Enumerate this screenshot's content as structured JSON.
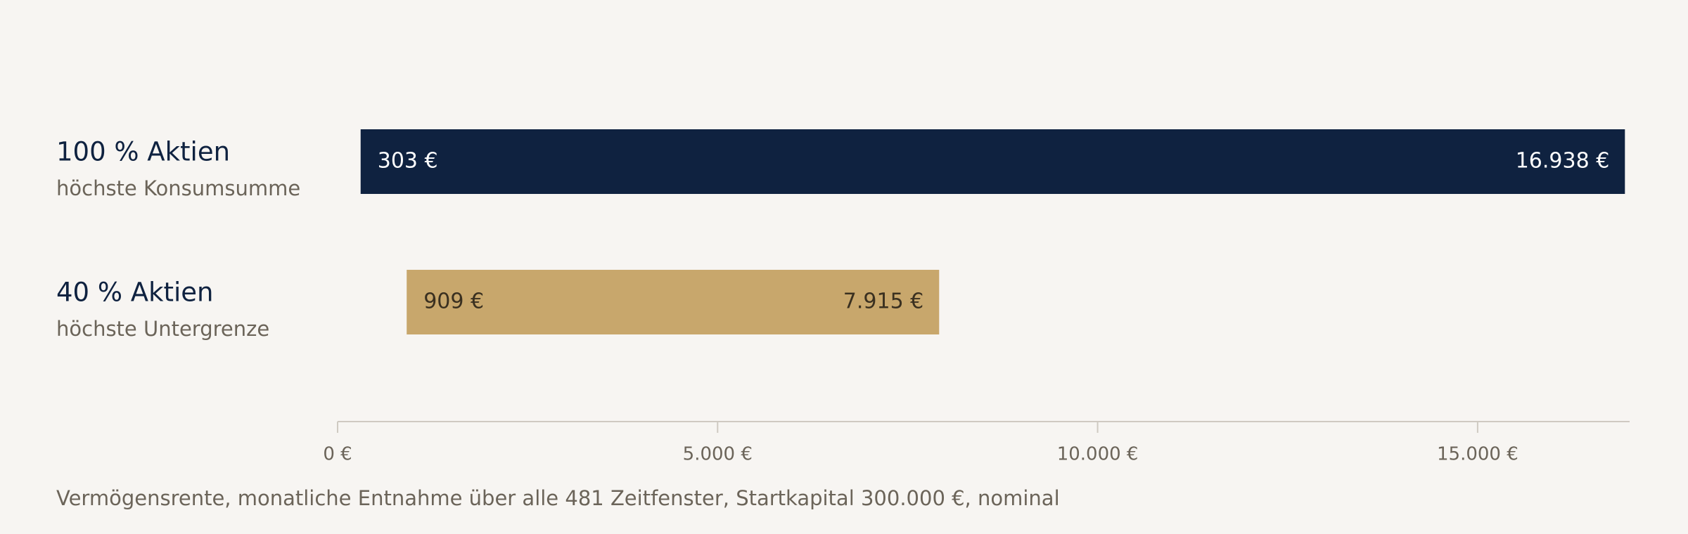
{
  "chart_data": {
    "type": "range_bar",
    "categories": [
      "100 % Aktien",
      "40 % Aktien"
    ],
    "subtitles": [
      "höchste Konsumsumme",
      "höchste Untergrenze"
    ],
    "low": [
      303,
      909
    ],
    "high": [
      16938,
      7915
    ],
    "low_labels": [
      "303 €",
      "909 €"
    ],
    "high_labels": [
      "16.938 €",
      "7.915 €"
    ],
    "colors": [
      "#0f2240",
      "#c8a76c"
    ],
    "label_colors": [
      "#ffffff",
      "#3a3020"
    ],
    "xlim": [
      0,
      17000
    ],
    "xticks": [
      {
        "value": 0,
        "label": "0 €"
      },
      {
        "value": 5000,
        "label": "5.000 €"
      },
      {
        "value": 10000,
        "label": "10.000 €"
      },
      {
        "value": 15000,
        "label": "15.000 €"
      }
    ],
    "caption": "Vermögensrente, monatliche Entnahme über alle 481 Zeitfenster, Startkapital 300.000 €, nominal"
  }
}
